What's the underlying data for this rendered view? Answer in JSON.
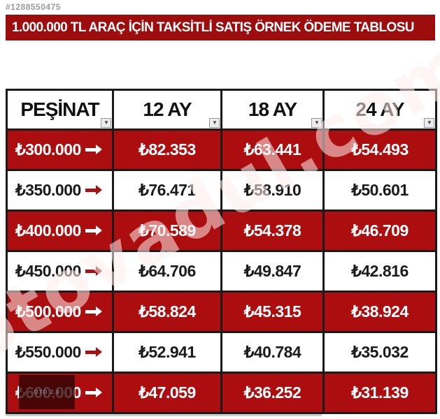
{
  "photo_id": "#1288550475",
  "banner": {
    "title": "1.000.000 TL ARAÇ İÇİN TAKSİTLİ SATIŞ ÖRNEK ÖDEME TABLOSU"
  },
  "table": {
    "headers": [
      "PEŞİNAT",
      "12 AY",
      "18 AY",
      "24 AY"
    ],
    "rows": [
      {
        "pesinat": "₺300.000",
        "ay12": "₺82.353",
        "ay18": "₺63.441",
        "ay24": "₺54.493"
      },
      {
        "pesinat": "₺350.000",
        "ay12": "₺76.471",
        "ay18": "₺58.910",
        "ay24": "₺50.601"
      },
      {
        "pesinat": "₺400.000",
        "ay12": "₺70.589",
        "ay18": "₺54.378",
        "ay24": "₺46.709"
      },
      {
        "pesinat": "₺450.000",
        "ay12": "₺64.706",
        "ay18": "₺49.847",
        "ay24": "₺42.816"
      },
      {
        "pesinat": "₺500.000",
        "ay12": "₺58.824",
        "ay18": "₺45.315",
        "ay24": "₺38.924"
      },
      {
        "pesinat": "₺550.000",
        "ay12": "₺52.941",
        "ay18": "₺40.784",
        "ay24": "₺35.032"
      },
      {
        "pesinat": "₺600.000",
        "ay12": "₺47.059",
        "ay18": "₺36.252",
        "ay24": "₺31.139"
      }
    ]
  },
  "icons": {
    "filter_dropdown": "▼"
  },
  "watermark": {
    "diagonal_text": "otovadul.com",
    "badge_text": "OTO 2.0"
  },
  "colors": {
    "banner_red": "#9E0D0D",
    "row_red": "#AC0E0F",
    "border_black": "#1A1A1A",
    "arrow_dark_red": "#A31414",
    "id_gray": "#9A9A9A"
  }
}
